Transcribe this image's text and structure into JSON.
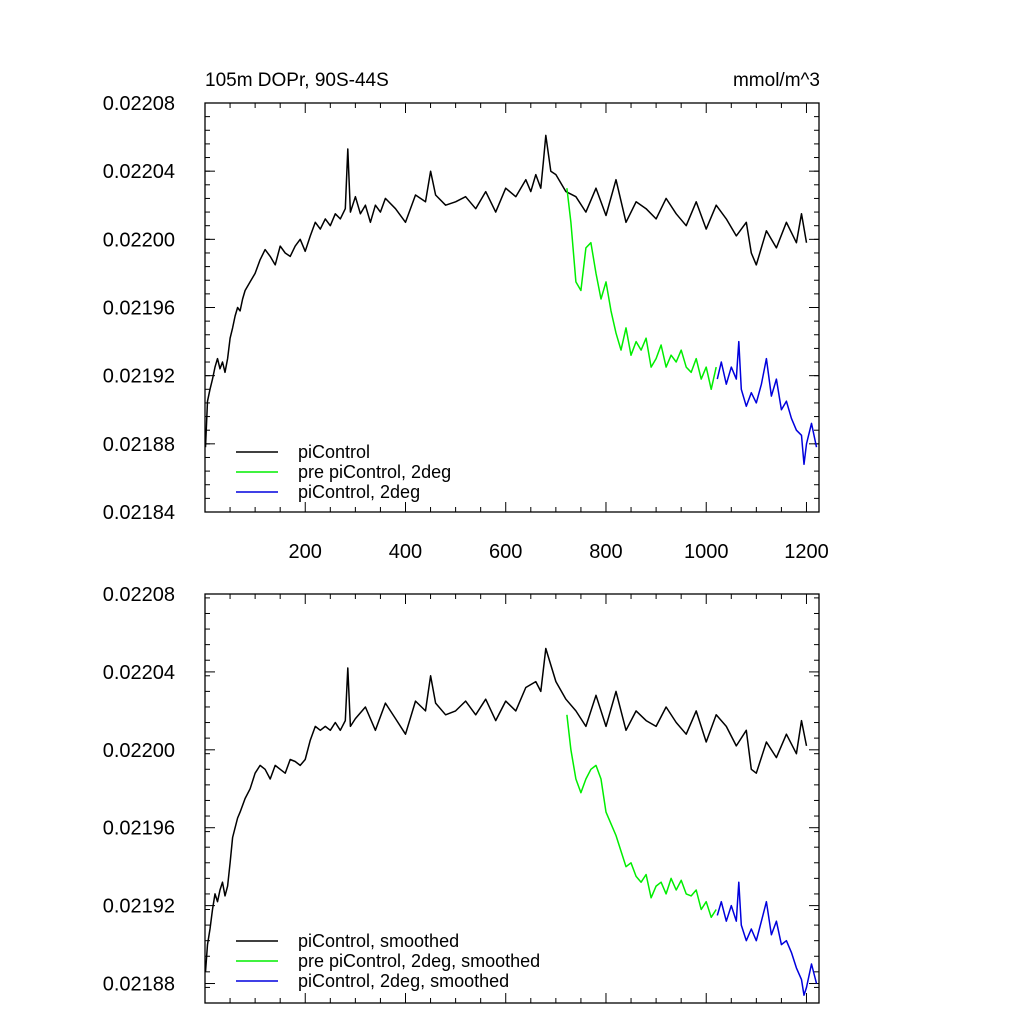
{
  "chart_data": [
    {
      "type": "line",
      "title": "105m DOPr, 90S-44S",
      "units": "mmol/m^3",
      "xlim": [
        0,
        1225
      ],
      "ylim": [
        0.02184,
        0.02208
      ],
      "xticks": [
        200,
        400,
        600,
        800,
        1000,
        1200
      ],
      "xtick_labels": [
        "200",
        "400",
        "600",
        "800",
        "1000",
        "1200"
      ],
      "yticks": [
        0.02184,
        0.02188,
        0.02192,
        0.02196,
        0.022,
        0.02204,
        0.02208
      ],
      "ytick_labels": [
        "0.02184",
        "0.02188",
        "0.02192",
        "0.02196",
        "0.02200",
        "0.02204",
        "0.02208"
      ],
      "legend_position": "bottom-left",
      "series": [
        {
          "name": "piControl",
          "color": "#000000",
          "x": [
            1,
            5,
            10,
            15,
            20,
            25,
            30,
            35,
            40,
            45,
            50,
            55,
            60,
            65,
            70,
            75,
            80,
            90,
            100,
            110,
            120,
            130,
            140,
            150,
            160,
            170,
            180,
            190,
            200,
            210,
            220,
            230,
            240,
            250,
            260,
            270,
            280,
            285,
            290,
            300,
            310,
            320,
            330,
            340,
            350,
            360,
            380,
            400,
            420,
            440,
            450,
            460,
            480,
            500,
            520,
            540,
            560,
            580,
            600,
            620,
            640,
            650,
            660,
            670,
            675,
            680,
            690,
            700,
            720,
            740,
            760,
            780,
            800,
            820,
            840,
            860,
            880,
            900,
            920,
            940,
            960,
            980,
            1000,
            1020,
            1040,
            1060,
            1080,
            1090,
            1100,
            1120,
            1140,
            1160,
            1180,
            1190,
            1200
          ],
          "values": [
            0.021878,
            0.021905,
            0.021912,
            0.021918,
            0.021925,
            0.02193,
            0.021924,
            0.021928,
            0.021922,
            0.02193,
            0.021942,
            0.021948,
            0.021955,
            0.02196,
            0.021958,
            0.021965,
            0.02197,
            0.021975,
            0.02198,
            0.021988,
            0.021994,
            0.02199,
            0.021985,
            0.021996,
            0.021992,
            0.02199,
            0.021996,
            0.022,
            0.021993,
            0.022002,
            0.02201,
            0.022006,
            0.022012,
            0.022008,
            0.022015,
            0.022012,
            0.022018,
            0.022053,
            0.022016,
            0.022025,
            0.022015,
            0.02202,
            0.02201,
            0.02202,
            0.022016,
            0.022024,
            0.022018,
            0.02201,
            0.022026,
            0.022022,
            0.02204,
            0.022026,
            0.02202,
            0.022022,
            0.022025,
            0.022018,
            0.022028,
            0.022016,
            0.02203,
            0.022025,
            0.022035,
            0.022028,
            0.022038,
            0.02203,
            0.022045,
            0.022061,
            0.02204,
            0.022038,
            0.022028,
            0.022025,
            0.022016,
            0.02203,
            0.022014,
            0.022035,
            0.02201,
            0.022022,
            0.022018,
            0.022012,
            0.022024,
            0.022015,
            0.022008,
            0.022022,
            0.022006,
            0.02202,
            0.022012,
            0.022002,
            0.02201,
            0.021992,
            0.021985,
            0.022005,
            0.021995,
            0.02201,
            0.021998,
            0.022015,
            0.021998
          ]
        },
        {
          "name": "pre piControl, 2deg",
          "color": "#00ee00",
          "x": [
            722,
            730,
            740,
            750,
            760,
            770,
            780,
            790,
            800,
            810,
            820,
            830,
            840,
            850,
            860,
            870,
            880,
            890,
            900,
            910,
            920,
            930,
            940,
            950,
            960,
            970,
            980,
            990,
            1000,
            1010,
            1020
          ],
          "values": [
            0.02203,
            0.02201,
            0.021975,
            0.02197,
            0.021995,
            0.021998,
            0.02198,
            0.021965,
            0.021975,
            0.021958,
            0.021945,
            0.021935,
            0.021948,
            0.021932,
            0.02194,
            0.021935,
            0.021942,
            0.021925,
            0.02193,
            0.021938,
            0.021925,
            0.021932,
            0.021928,
            0.021935,
            0.021925,
            0.021922,
            0.02193,
            0.021918,
            0.021925,
            0.021912,
            0.021925
          ]
        },
        {
          "name": "piControl, 2deg",
          "color": "#0000dd",
          "x": [
            1022,
            1030,
            1040,
            1050,
            1060,
            1065,
            1070,
            1080,
            1090,
            1100,
            1110,
            1120,
            1130,
            1140,
            1150,
            1160,
            1170,
            1180,
            1190,
            1195,
            1200,
            1210,
            1220
          ],
          "values": [
            0.021918,
            0.021928,
            0.021915,
            0.021925,
            0.021918,
            0.02194,
            0.021912,
            0.021902,
            0.02191,
            0.021904,
            0.021915,
            0.02193,
            0.021908,
            0.021918,
            0.0219,
            0.021905,
            0.021895,
            0.021888,
            0.021885,
            0.021868,
            0.02188,
            0.021892,
            0.021878
          ]
        }
      ]
    },
    {
      "type": "line",
      "title": "",
      "units": "",
      "xlim": [
        0,
        1225
      ],
      "ylim": [
        0.02187,
        0.02208
      ],
      "xticks": [
        200,
        400,
        600,
        800,
        1000,
        1200
      ],
      "yticks": [
        0.02188,
        0.02192,
        0.02196,
        0.022,
        0.02204,
        0.02208
      ],
      "ytick_labels": [
        "0.02188",
        "0.02192",
        "0.02196",
        "0.02200",
        "0.02204",
        "0.02208"
      ],
      "legend_position": "bottom-left",
      "series": [
        {
          "name": "piControl, smoothed",
          "color": "#000000",
          "x": [
            1,
            5,
            10,
            15,
            20,
            25,
            30,
            35,
            40,
            45,
            50,
            55,
            60,
            65,
            70,
            80,
            90,
            100,
            110,
            120,
            130,
            140,
            150,
            160,
            170,
            180,
            190,
            200,
            210,
            220,
            230,
            240,
            250,
            260,
            270,
            280,
            285,
            290,
            300,
            320,
            340,
            360,
            380,
            400,
            420,
            440,
            450,
            460,
            480,
            500,
            520,
            540,
            560,
            580,
            600,
            620,
            640,
            660,
            670,
            680,
            700,
            720,
            740,
            760,
            780,
            800,
            820,
            840,
            860,
            880,
            900,
            920,
            940,
            960,
            980,
            1000,
            1020,
            1040,
            1060,
            1080,
            1090,
            1100,
            1120,
            1140,
            1160,
            1180,
            1190,
            1200
          ],
          "values": [
            0.021886,
            0.0219,
            0.021908,
            0.021918,
            0.021926,
            0.021922,
            0.021928,
            0.021932,
            0.021925,
            0.02193,
            0.021942,
            0.021955,
            0.02196,
            0.021965,
            0.021968,
            0.021975,
            0.02198,
            0.021988,
            0.021992,
            0.02199,
            0.021985,
            0.021992,
            0.02199,
            0.021988,
            0.021995,
            0.021994,
            0.021992,
            0.021995,
            0.022005,
            0.022012,
            0.02201,
            0.022012,
            0.02201,
            0.022014,
            0.02201,
            0.022015,
            0.022042,
            0.022012,
            0.022016,
            0.022022,
            0.02201,
            0.022024,
            0.022016,
            0.022008,
            0.022025,
            0.02202,
            0.022038,
            0.022024,
            0.022018,
            0.02202,
            0.022025,
            0.022018,
            0.022026,
            0.022015,
            0.022025,
            0.02202,
            0.022032,
            0.022035,
            0.02203,
            0.022052,
            0.022035,
            0.022026,
            0.02202,
            0.022012,
            0.022028,
            0.022012,
            0.02203,
            0.02201,
            0.02202,
            0.022015,
            0.022012,
            0.022022,
            0.022014,
            0.022008,
            0.02202,
            0.022004,
            0.022018,
            0.022012,
            0.022002,
            0.02201,
            0.02199,
            0.021988,
            0.022004,
            0.021996,
            0.022008,
            0.021998,
            0.022015,
            0.022002
          ]
        },
        {
          "name": "pre piControl, 2deg, smoothed",
          "color": "#00ee00",
          "x": [
            722,
            730,
            740,
            750,
            760,
            770,
            780,
            790,
            800,
            810,
            820,
            830,
            840,
            850,
            860,
            870,
            880,
            890,
            900,
            910,
            920,
            930,
            940,
            950,
            960,
            970,
            980,
            990,
            1000,
            1010,
            1020
          ],
          "values": [
            0.022018,
            0.022,
            0.021985,
            0.021978,
            0.021985,
            0.02199,
            0.021992,
            0.021985,
            0.021968,
            0.021962,
            0.021956,
            0.021948,
            0.02194,
            0.021942,
            0.021935,
            0.021932,
            0.021936,
            0.021924,
            0.02193,
            0.021932,
            0.021926,
            0.021934,
            0.021928,
            0.021933,
            0.021926,
            0.021925,
            0.021928,
            0.021918,
            0.021922,
            0.021914,
            0.021918
          ]
        },
        {
          "name": "piControl, 2deg, smoothed",
          "color": "#0000dd",
          "x": [
            1022,
            1030,
            1040,
            1050,
            1060,
            1065,
            1070,
            1080,
            1090,
            1100,
            1110,
            1120,
            1130,
            1140,
            1150,
            1160,
            1170,
            1180,
            1190,
            1195,
            1200,
            1210,
            1220
          ],
          "values": [
            0.021915,
            0.021922,
            0.021912,
            0.02192,
            0.021912,
            0.021932,
            0.02191,
            0.021902,
            0.021908,
            0.021902,
            0.021912,
            0.021922,
            0.021905,
            0.021912,
            0.0219,
            0.021902,
            0.021896,
            0.021888,
            0.021882,
            0.021874,
            0.021878,
            0.02189,
            0.02188
          ]
        }
      ]
    }
  ]
}
